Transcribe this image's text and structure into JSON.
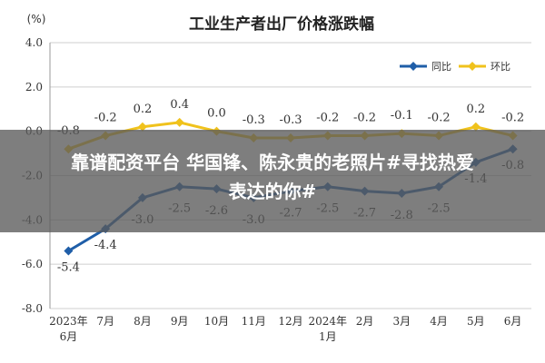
{
  "chart_data": {
    "type": "line",
    "title": "工业生产者出厂价格涨跌幅",
    "ylabel": "(%)",
    "ylim": [
      -8.0,
      4.0
    ],
    "yticks": [
      "4.0",
      "2.0",
      "0.0",
      "-2.0",
      "-4.0",
      "-6.0",
      "-8.0"
    ],
    "categories": [
      "2023年\n6月",
      "7月",
      "8月",
      "9月",
      "10月",
      "11月",
      "12月",
      "2024年\n1月",
      "2月",
      "3月",
      "4月",
      "5月",
      "6月"
    ],
    "legend_position": "top-right",
    "grid": true,
    "series": [
      {
        "name": "同比",
        "color": "#1f5ea8",
        "values": [
          -5.4,
          -4.4,
          -3.0,
          -2.5,
          -2.6,
          -3.0,
          -2.7,
          -2.5,
          -2.7,
          -2.8,
          -2.5,
          -1.4,
          -0.8
        ]
      },
      {
        "name": "环比",
        "color": "#f0c21c",
        "values": [
          -0.8,
          -0.2,
          0.2,
          0.4,
          0.0,
          -0.3,
          -0.3,
          -0.2,
          -0.2,
          -0.1,
          -0.2,
          0.2,
          -0.2
        ]
      }
    ]
  },
  "banner": {
    "line1": "靠谱配资平台 华国锋、陈永贵的老照片#寻找热爱",
    "line2": "表达的你#"
  }
}
